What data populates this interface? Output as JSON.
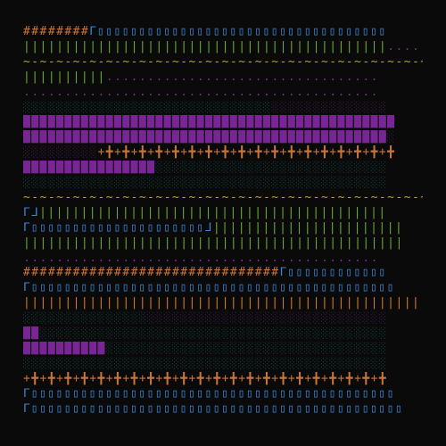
{
  "palette": {
    "background": "#0a0a0a",
    "hash": "#c8743a",
    "blue_block": "#3b86d8",
    "pipe": "#6aa834",
    "tilde": "#b8a23a",
    "dot": "#7a2a86",
    "shade": "#133a3a",
    "shade_purple": "#3a1a44",
    "purple": "#7a2596",
    "cross": "#c8743a",
    "orange_pipe": "#d07a20"
  },
  "rows": [
    {
      "segments": [
        {
          "text": "########",
          "color": "hash"
        },
        {
          "text": "ᒥ▯▯▯▯▯▯▯▯▯▯▯▯▯▯▯▯▯▯▯▯▯▯▯▯▯▯▯▯▯▯▯▯▯▯▯",
          "color": "blue_block"
        }
      ]
    },
    {
      "segments": [
        {
          "text": "||||||||||||||||||||||||||||||||||||||||||||",
          "color": "pipe"
        },
        {
          "text": "........",
          "color": "dot"
        }
      ]
    },
    {
      "segments": [
        {
          "text": "~-~-~-~-~-~-~-~-~-~-~-~-~-~-~-~-~-~-~-~-~-~-~-~-~-~-~-~-~-~-~-~-~~",
          "color": "tilde"
        },
        {
          "text": "###########",
          "color": "hash"
        }
      ]
    },
    {
      "segments": [
        {
          "text": "||||||||||",
          "color": "pipe"
        },
        {
          "text": ".................................",
          "color": "dot"
        }
      ]
    },
    {
      "segments": [
        {
          "text": "...........................................",
          "color": "dot"
        }
      ]
    },
    {
      "segments": [
        {
          "text": "░░░░░░░░░░░░░░░░░░░░░░░░░░░░░░",
          "color": "shade"
        },
        {
          "text": "░░░░░░░░░░░░░░",
          "color": "shade_purple"
        }
      ]
    },
    {
      "segments": [
        {
          "text": "█████████████████████████████████████████████",
          "color": "purple"
        }
      ]
    },
    {
      "segments": [
        {
          "text": "████████████████████████████████████████████",
          "color": "purple"
        },
        {
          "text": "░",
          "color": "shade_purple"
        }
      ]
    },
    {
      "segments": [
        {
          "text": "░░░░░░░░░",
          "color": "shade_purple"
        },
        {
          "text": "+╋+╋+╋+╋+╋+╋+╋+╋+╋+╋+╋+╋+╋+╋+╋+╋+╋+╋",
          "color": "cross"
        }
      ]
    },
    {
      "segments": [
        {
          "text": "████████████████",
          "color": "purple"
        },
        {
          "text": "░░░░░░░░░░░░░░░░░░░░░░░░░░░░",
          "color": "shade"
        }
      ]
    },
    {
      "segments": [
        {
          "text": "░░░░░░░░░░░░░░░░░░░░░░░░░░░░░░░░░░░░░░░░░░░░",
          "color": "shade"
        }
      ]
    },
    {
      "segments": [
        {
          "text": "~-~-~-~-~-~-~-~-~-~-~-~-~-~-~-~-~-~-~-~-~-~-~-~-~-~-~-~-~-~-~-~-~-~-~-~-~-~-~-~-~-~-~-~-~",
          "color": "tilde"
        }
      ]
    },
    {
      "segments": [
        {
          "text": "ᒥᒧ",
          "color": "blue_block"
        },
        {
          "text": "||||||||||||||||||||||||||||||||||||||||||",
          "color": "pipe"
        }
      ]
    },
    {
      "segments": [
        {
          "text": "ᒥ▯▯▯▯▯▯▯▯▯▯▯▯▯▯▯▯▯▯▯▯▯ᒧ",
          "color": "blue_block"
        },
        {
          "text": "|||||||||||||||||||||||",
          "color": "pipe"
        }
      ]
    },
    {
      "segments": [
        {
          "text": "||||||||||||||||||||||||||||||||||||||||||||||",
          "color": "pipe"
        }
      ]
    },
    {
      "segments": [
        {
          "text": "...........................................",
          "color": "dot"
        }
      ]
    },
    {
      "segments": [
        {
          "text": "###############################",
          "color": "hash"
        },
        {
          "text": "ᒥ▯▯▯▯▯▯▯▯▯▯▯▯",
          "color": "blue_block"
        }
      ]
    },
    {
      "segments": [
        {
          "text": "ᒥ▯▯▯▯▯▯▯▯▯▯▯▯▯▯▯▯▯▯▯▯▯▯▯▯▯▯▯▯▯▯▯▯▯▯▯▯▯▯▯▯▯▯▯▯",
          "color": "blue_block"
        }
      ]
    },
    {
      "segments": [
        {
          "text": "||||||||||||||||||||||||||||||||||||||||||||||||||||||||||||||||||||||||||||||||||",
          "color": "orange_pipe"
        }
      ]
    },
    {
      "segments": [
        {
          "text": "░░░░░░░░░░░░░░░",
          "color": "shade"
        },
        {
          "text": "░░░░░░░░░░░░░░░░░░░░░░░░░░░░░",
          "color": "shade_purple"
        }
      ]
    },
    {
      "segments": [
        {
          "text": "██",
          "color": "purple"
        },
        {
          "text": "░░░░░░░░░░░░░░░░░░░░░░░░░░░░░░░░░░░░░░░░░░",
          "color": "shade"
        }
      ]
    },
    {
      "segments": [
        {
          "text": "██████████",
          "color": "purple"
        },
        {
          "text": "░░░░░░░░░░░░░░░░░░░░░░░░░░░░░░░░░░",
          "color": "shade"
        }
      ]
    },
    {
      "segments": [
        {
          "text": "░░░░░░░░░░░░░░░░░░░░░░░░░░░░░░░░░░░░░░░░░░░░",
          "color": "shade"
        }
      ]
    },
    {
      "segments": [
        {
          "text": "+╋+╋+╋+╋+╋+╋+╋+╋+╋+╋+╋+╋+╋+╋+╋+╋+╋+╋+╋+╋+╋+╋",
          "color": "cross"
        }
      ]
    },
    {
      "segments": [
        {
          "text": "ᒥ▯▯▯▯▯▯▯▯▯▯▯▯▯▯▯▯▯▯▯▯▯▯▯▯▯▯▯▯▯▯▯▯▯▯▯▯▯▯▯▯▯▯▯▯",
          "color": "blue_block"
        }
      ]
    },
    {
      "segments": [
        {
          "text": "ᒥ▯▯▯▯▯▯▯▯▯▯▯▯▯▯▯▯▯▯▯▯▯▯▯▯▯▯▯▯▯▯▯▯▯▯▯▯▯▯▯▯▯▯▯▯▯",
          "color": "blue_block"
        }
      ]
    }
  ]
}
